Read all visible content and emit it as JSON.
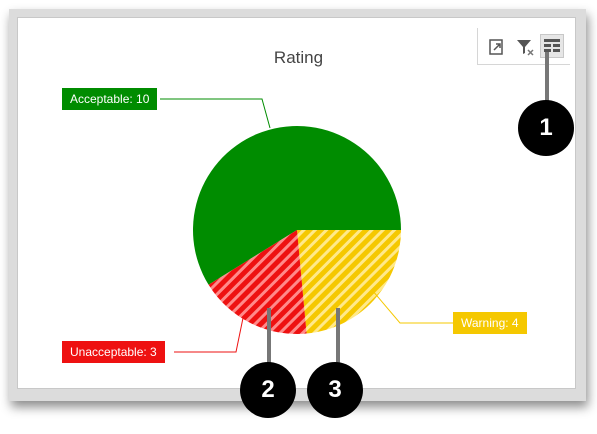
{
  "window": {
    "toolbar": {
      "export_icon": "export-icon",
      "clear_filter_icon": "clear-filter-icon",
      "layout_icon": "layout-icon"
    }
  },
  "chart_data": {
    "type": "pie",
    "title": "Rating",
    "slices": [
      {
        "name": "Acceptable",
        "value": 10,
        "label": "Acceptable: 10",
        "color": "#008c00",
        "pattern": "solid"
      },
      {
        "name": "Warning",
        "value": 4,
        "label": "Warning: 4",
        "color": "#f5c800",
        "pattern": "hatched"
      },
      {
        "name": "Unacceptable",
        "value": 3,
        "label": "Unacceptable: 3",
        "color": "#ee1111",
        "pattern": "hatched"
      }
    ]
  },
  "callouts": [
    {
      "number": "1"
    },
    {
      "number": "2"
    },
    {
      "number": "3"
    }
  ]
}
